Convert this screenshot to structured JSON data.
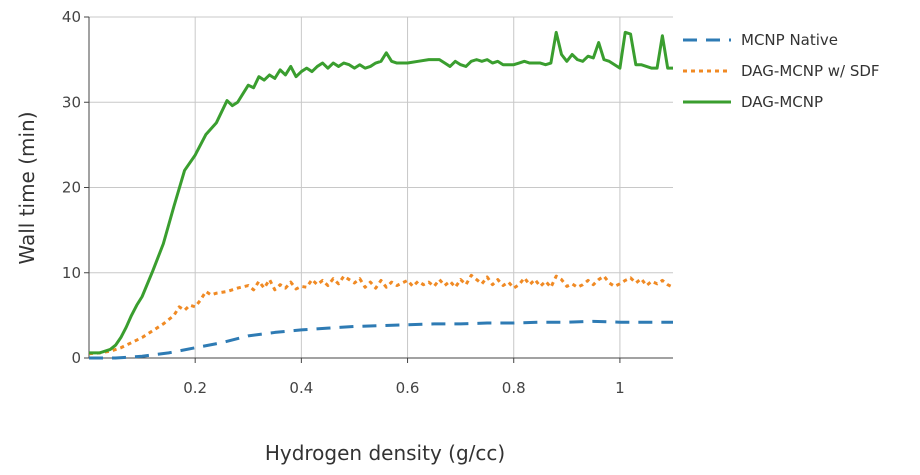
{
  "chart_data": {
    "type": "line",
    "xlabel": "Hydrogen density (g/cc)",
    "ylabel": "Wall time (min)",
    "xlim": [
      0,
      1.1
    ],
    "ylim": [
      0,
      40
    ],
    "xticks": [
      0.2,
      0.4,
      0.6,
      0.8,
      1
    ],
    "xtick_labels": [
      "0.2",
      "0.4",
      "0.6",
      "0.8",
      "1"
    ],
    "yticks": [
      0,
      10,
      20,
      30,
      40
    ],
    "ytick_labels": [
      "0",
      "10",
      "20",
      "30",
      "40"
    ],
    "grid": true,
    "legend_position": "right",
    "series": [
      {
        "name": "MCNP Native",
        "color": "#2e7bb4",
        "dash": "dashed",
        "points": [
          [
            0.0,
            0.0
          ],
          [
            0.05,
            0.0
          ],
          [
            0.1,
            0.2
          ],
          [
            0.15,
            0.6
          ],
          [
            0.2,
            1.2
          ],
          [
            0.25,
            1.8
          ],
          [
            0.3,
            2.6
          ],
          [
            0.35,
            3.0
          ],
          [
            0.4,
            3.3
          ],
          [
            0.45,
            3.5
          ],
          [
            0.5,
            3.7
          ],
          [
            0.55,
            3.8
          ],
          [
            0.6,
            3.9
          ],
          [
            0.65,
            4.0
          ],
          [
            0.7,
            4.0
          ],
          [
            0.75,
            4.1
          ],
          [
            0.8,
            4.1
          ],
          [
            0.85,
            4.2
          ],
          [
            0.9,
            4.2
          ],
          [
            0.95,
            4.3
          ],
          [
            1.0,
            4.2
          ],
          [
            1.05,
            4.2
          ],
          [
            1.1,
            4.2
          ]
        ]
      },
      {
        "name": "DAG-MCNP w/ SDF",
        "color": "#f08a24",
        "dash": "dotted",
        "points": [
          [
            0.0,
            0.5
          ],
          [
            0.02,
            0.6
          ],
          [
            0.04,
            0.8
          ],
          [
            0.06,
            1.2
          ],
          [
            0.08,
            1.8
          ],
          [
            0.1,
            2.4
          ],
          [
            0.12,
            3.2
          ],
          [
            0.14,
            4.0
          ],
          [
            0.16,
            5.0
          ],
          [
            0.17,
            6.0
          ],
          [
            0.18,
            5.6
          ],
          [
            0.19,
            6.2
          ],
          [
            0.2,
            6.0
          ],
          [
            0.21,
            6.8
          ],
          [
            0.22,
            7.8
          ],
          [
            0.23,
            7.4
          ],
          [
            0.24,
            7.6
          ],
          [
            0.26,
            7.8
          ],
          [
            0.28,
            8.2
          ],
          [
            0.3,
            8.5
          ],
          [
            0.31,
            8.0
          ],
          [
            0.32,
            9.0
          ],
          [
            0.33,
            8.2
          ],
          [
            0.34,
            9.2
          ],
          [
            0.35,
            8.0
          ],
          [
            0.36,
            8.6
          ],
          [
            0.37,
            8.2
          ],
          [
            0.38,
            8.9
          ],
          [
            0.39,
            8.1
          ],
          [
            0.4,
            8.4
          ],
          [
            0.41,
            8.3
          ],
          [
            0.42,
            9.2
          ],
          [
            0.43,
            8.6
          ],
          [
            0.44,
            9.1
          ],
          [
            0.45,
            8.5
          ],
          [
            0.46,
            9.3
          ],
          [
            0.47,
            8.7
          ],
          [
            0.48,
            9.6
          ],
          [
            0.49,
            9.2
          ],
          [
            0.5,
            8.8
          ],
          [
            0.51,
            9.3
          ],
          [
            0.52,
            8.3
          ],
          [
            0.53,
            8.9
          ],
          [
            0.54,
            8.2
          ],
          [
            0.55,
            9.1
          ],
          [
            0.56,
            8.3
          ],
          [
            0.57,
            8.9
          ],
          [
            0.58,
            8.5
          ],
          [
            0.59,
            8.8
          ],
          [
            0.6,
            9.1
          ],
          [
            0.61,
            8.4
          ],
          [
            0.62,
            9.0
          ],
          [
            0.63,
            8.6
          ],
          [
            0.64,
            8.9
          ],
          [
            0.65,
            8.4
          ],
          [
            0.66,
            9.2
          ],
          [
            0.67,
            8.5
          ],
          [
            0.68,
            9.0
          ],
          [
            0.69,
            8.3
          ],
          [
            0.7,
            9.2
          ],
          [
            0.71,
            8.6
          ],
          [
            0.72,
            9.7
          ],
          [
            0.73,
            9.2
          ],
          [
            0.74,
            8.7
          ],
          [
            0.75,
            9.5
          ],
          [
            0.76,
            8.6
          ],
          [
            0.77,
            9.2
          ],
          [
            0.78,
            8.5
          ],
          [
            0.79,
            8.9
          ],
          [
            0.8,
            8.2
          ],
          [
            0.81,
            8.6
          ],
          [
            0.82,
            9.4
          ],
          [
            0.83,
            8.6
          ],
          [
            0.84,
            9.2
          ],
          [
            0.85,
            8.4
          ],
          [
            0.86,
            9.0
          ],
          [
            0.87,
            8.3
          ],
          [
            0.88,
            9.6
          ],
          [
            0.89,
            9.2
          ],
          [
            0.9,
            8.4
          ],
          [
            0.91,
            8.7
          ],
          [
            0.92,
            8.3
          ],
          [
            0.93,
            8.6
          ],
          [
            0.94,
            9.1
          ],
          [
            0.95,
            8.6
          ],
          [
            0.96,
            9.2
          ],
          [
            0.97,
            9.6
          ],
          [
            0.98,
            8.8
          ],
          [
            0.99,
            8.4
          ],
          [
            1.0,
            8.7
          ],
          [
            1.01,
            9.1
          ],
          [
            1.02,
            9.4
          ],
          [
            1.03,
            8.8
          ],
          [
            1.04,
            9.3
          ],
          [
            1.05,
            8.5
          ],
          [
            1.06,
            9.0
          ],
          [
            1.07,
            8.7
          ],
          [
            1.08,
            9.1
          ],
          [
            1.09,
            8.6
          ],
          [
            1.1,
            8.3
          ]
        ]
      },
      {
        "name": "DAG-MCNP",
        "color": "#3a9e2f",
        "dash": "solid",
        "points": [
          [
            0.0,
            0.6
          ],
          [
            0.02,
            0.6
          ],
          [
            0.04,
            1.0
          ],
          [
            0.05,
            1.5
          ],
          [
            0.06,
            2.4
          ],
          [
            0.07,
            3.6
          ],
          [
            0.08,
            5.0
          ],
          [
            0.09,
            6.2
          ],
          [
            0.1,
            7.2
          ],
          [
            0.12,
            10.2
          ],
          [
            0.14,
            13.4
          ],
          [
            0.16,
            17.8
          ],
          [
            0.18,
            22.0
          ],
          [
            0.2,
            23.8
          ],
          [
            0.22,
            26.2
          ],
          [
            0.24,
            27.6
          ],
          [
            0.26,
            30.2
          ],
          [
            0.27,
            29.6
          ],
          [
            0.28,
            30.0
          ],
          [
            0.29,
            31.0
          ],
          [
            0.3,
            32.0
          ],
          [
            0.31,
            31.7
          ],
          [
            0.32,
            33.0
          ],
          [
            0.33,
            32.6
          ],
          [
            0.34,
            33.2
          ],
          [
            0.35,
            32.8
          ],
          [
            0.36,
            33.8
          ],
          [
            0.37,
            33.2
          ],
          [
            0.38,
            34.2
          ],
          [
            0.39,
            33.0
          ],
          [
            0.4,
            33.6
          ],
          [
            0.41,
            34.0
          ],
          [
            0.42,
            33.6
          ],
          [
            0.43,
            34.2
          ],
          [
            0.44,
            34.6
          ],
          [
            0.45,
            34.0
          ],
          [
            0.46,
            34.6
          ],
          [
            0.47,
            34.2
          ],
          [
            0.48,
            34.6
          ],
          [
            0.49,
            34.4
          ],
          [
            0.5,
            34.0
          ],
          [
            0.51,
            34.4
          ],
          [
            0.52,
            34.0
          ],
          [
            0.53,
            34.2
          ],
          [
            0.54,
            34.6
          ],
          [
            0.55,
            34.8
          ],
          [
            0.56,
            35.8
          ],
          [
            0.57,
            34.8
          ],
          [
            0.58,
            34.6
          ],
          [
            0.6,
            34.6
          ],
          [
            0.62,
            34.8
          ],
          [
            0.64,
            35.0
          ],
          [
            0.66,
            35.0
          ],
          [
            0.67,
            34.6
          ],
          [
            0.68,
            34.2
          ],
          [
            0.69,
            34.8
          ],
          [
            0.7,
            34.4
          ],
          [
            0.71,
            34.2
          ],
          [
            0.72,
            34.8
          ],
          [
            0.73,
            35.0
          ],
          [
            0.74,
            34.8
          ],
          [
            0.75,
            35.0
          ],
          [
            0.76,
            34.6
          ],
          [
            0.77,
            34.8
          ],
          [
            0.78,
            34.4
          ],
          [
            0.79,
            34.4
          ],
          [
            0.8,
            34.4
          ],
          [
            0.81,
            34.6
          ],
          [
            0.82,
            34.8
          ],
          [
            0.83,
            34.6
          ],
          [
            0.84,
            34.6
          ],
          [
            0.85,
            34.6
          ],
          [
            0.86,
            34.4
          ],
          [
            0.87,
            34.6
          ],
          [
            0.88,
            38.2
          ],
          [
            0.89,
            35.6
          ],
          [
            0.9,
            34.8
          ],
          [
            0.91,
            35.6
          ],
          [
            0.92,
            35.0
          ],
          [
            0.93,
            34.8
          ],
          [
            0.94,
            35.4
          ],
          [
            0.95,
            35.2
          ],
          [
            0.96,
            37.0
          ],
          [
            0.97,
            35.0
          ],
          [
            0.98,
            34.8
          ],
          [
            0.99,
            34.4
          ],
          [
            1.0,
            34.0
          ],
          [
            1.01,
            38.2
          ],
          [
            1.02,
            38.0
          ],
          [
            1.03,
            34.4
          ],
          [
            1.04,
            34.4
          ],
          [
            1.05,
            34.2
          ],
          [
            1.06,
            34.0
          ],
          [
            1.07,
            34.0
          ],
          [
            1.08,
            37.8
          ],
          [
            1.09,
            34.0
          ],
          [
            1.1,
            34.0
          ]
        ]
      }
    ]
  }
}
